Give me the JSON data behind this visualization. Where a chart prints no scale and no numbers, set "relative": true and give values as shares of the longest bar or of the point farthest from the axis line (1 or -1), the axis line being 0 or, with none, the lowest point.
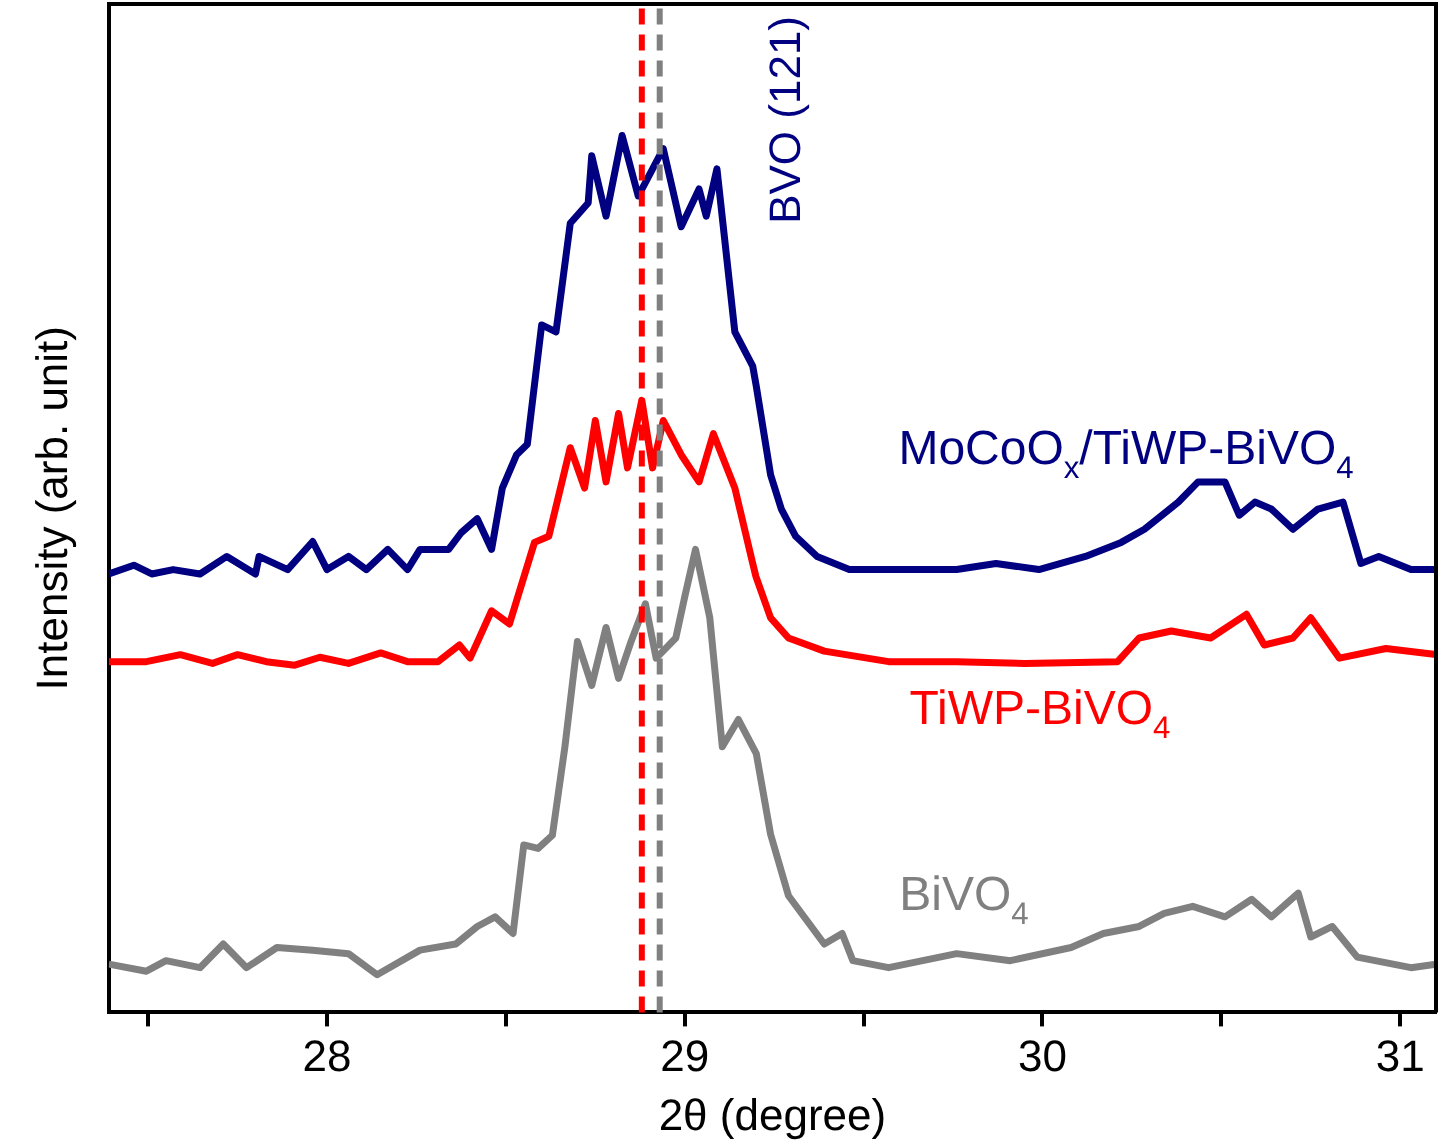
{
  "chart_data": {
    "type": "line",
    "relative": true,
    "xlabel": "2θ (degree)",
    "ylabel": "Intensity (arb. unit)",
    "xlim": [
      27.39,
      31.1
    ],
    "xticks": [
      {
        "value": 27.5,
        "label": null
      },
      28,
      {
        "value": 28.5,
        "label": null
      },
      29,
      {
        "value": 29.5,
        "label": null
      },
      30,
      {
        "value": 30.5,
        "label": null
      },
      31
    ],
    "marker": "none",
    "line_style": "solid",
    "legend": false,
    "grid": false,
    "annotations": [
      "BVO (121)"
    ],
    "ref_lines": [
      {
        "axis": "x",
        "value": 28.88,
        "color": "#ff0000",
        "line_style": "dashed"
      },
      {
        "axis": "x",
        "value": 28.93,
        "color": "#808080",
        "line_style": "dashed"
      }
    ],
    "series": [
      {
        "name": "MoCoO$_{x}$/TiWP-BiVO$_{4}$",
        "color": "#000080",
        "x": [
          27.39,
          27.46,
          27.51,
          27.57,
          27.645,
          27.72,
          27.8,
          27.81,
          27.89,
          27.96,
          28.0,
          28.06,
          28.11,
          28.17,
          28.225,
          28.26,
          28.34,
          28.375,
          28.42,
          28.46,
          28.49,
          28.53,
          28.56,
          28.6,
          28.64,
          28.68,
          28.73,
          28.74,
          28.78,
          28.825,
          28.87,
          28.94,
          28.99,
          29.04,
          29.06,
          29.09,
          29.14,
          29.19,
          29.2,
          29.24,
          29.27,
          29.31,
          29.37,
          29.46,
          29.57,
          29.76,
          29.87,
          29.99,
          30.12,
          30.22,
          30.285,
          30.38,
          30.435,
          30.51,
          30.55,
          30.594,
          30.64,
          30.7,
          30.77,
          30.84,
          30.89,
          30.94,
          31.03,
          31.1
        ],
        "values": [
          0.5,
          0.51,
          0.5,
          0.505,
          0.5,
          0.52,
          0.5,
          0.52,
          0.505,
          0.537,
          0.505,
          0.52,
          0.505,
          0.528,
          0.505,
          0.528,
          0.528,
          0.547,
          0.563,
          0.528,
          0.598,
          0.636,
          0.648,
          0.784,
          0.776,
          0.9,
          0.923,
          0.977,
          0.908,
          1,
          0.931,
          0.985,
          0.896,
          0.939,
          0.908,
          0.962,
          0.776,
          0.737,
          0.714,
          0.613,
          0.574,
          0.543,
          0.52,
          0.505,
          0.505,
          0.505,
          0.512,
          0.505,
          0.52,
          0.536,
          0.551,
          0.582,
          0.605,
          0.605,
          0.567,
          0.582,
          0.574,
          0.551,
          0.574,
          0.582,
          0.512,
          0.52,
          0.505,
          0.505
        ]
      },
      {
        "name": "TiWP-BiVO$_{4}$",
        "color": "#ff0000",
        "x": [
          27.39,
          27.495,
          27.59,
          27.68,
          27.75,
          27.83,
          27.91,
          27.98,
          28.06,
          28.15,
          28.225,
          28.31,
          28.37,
          28.4,
          28.46,
          28.51,
          28.58,
          28.62,
          28.68,
          28.72,
          28.75,
          28.78,
          28.815,
          28.84,
          28.88,
          28.91,
          28.94,
          28.99,
          29.04,
          29.08,
          29.14,
          29.19,
          29.199,
          29.24,
          29.29,
          29.39,
          29.57,
          29.76,
          29.95,
          30.21,
          30.27,
          30.36,
          30.47,
          30.57,
          30.62,
          30.7,
          30.75,
          30.83,
          30.96,
          31.1
        ],
        "values": [
          0.4,
          0.4,
          0.408,
          0.398,
          0.408,
          0.4,
          0.396,
          0.405,
          0.398,
          0.41,
          0.4,
          0.4,
          0.419,
          0.404,
          0.458,
          0.443,
          0.536,
          0.543,
          0.644,
          0.598,
          0.675,
          0.605,
          0.683,
          0.621,
          0.698,
          0.621,
          0.675,
          0.636,
          0.605,
          0.66,
          0.598,
          0.512,
          0.497,
          0.45,
          0.427,
          0.412,
          0.4,
          0.4,
          0.398,
          0.4,
          0.427,
          0.435,
          0.427,
          0.454,
          0.419,
          0.427,
          0.45,
          0.404,
          0.415,
          0.408
        ]
      },
      {
        "name": "BiVO$_{4}$",
        "color": "#808080",
        "x": [
          27.39,
          27.495,
          27.55,
          27.645,
          27.71,
          27.775,
          27.86,
          27.96,
          28.06,
          28.14,
          28.26,
          28.36,
          28.42,
          28.47,
          28.52,
          28.55,
          28.59,
          28.63,
          28.665,
          28.7,
          28.74,
          28.78,
          28.815,
          28.85,
          28.89,
          28.92,
          28.975,
          29.0,
          29.03,
          29.07,
          29.105,
          29.15,
          29.2,
          29.24,
          29.29,
          29.39,
          29.44,
          29.47,
          29.57,
          29.76,
          29.91,
          30.08,
          30.17,
          30.27,
          30.34,
          30.42,
          30.51,
          30.585,
          30.64,
          30.715,
          30.75,
          30.81,
          30.88,
          31.03,
          31.1
        ],
        "values": [
          0.055,
          0.047,
          0.059,
          0.051,
          0.078,
          0.051,
          0.074,
          0.071,
          0.067,
          0.043,
          0.071,
          0.078,
          0.098,
          0.109,
          0.09,
          0.191,
          0.187,
          0.202,
          0.303,
          0.423,
          0.373,
          0.439,
          0.381,
          0.423,
          0.466,
          0.404,
          0.427,
          0.474,
          0.528,
          0.45,
          0.303,
          0.334,
          0.295,
          0.203,
          0.133,
          0.078,
          0.09,
          0.059,
          0.051,
          0.067,
          0.059,
          0.074,
          0.09,
          0.098,
          0.113,
          0.121,
          0.109,
          0.129,
          0.109,
          0.136,
          0.086,
          0.098,
          0.063,
          0.051,
          0.055
        ]
      }
    ]
  }
}
